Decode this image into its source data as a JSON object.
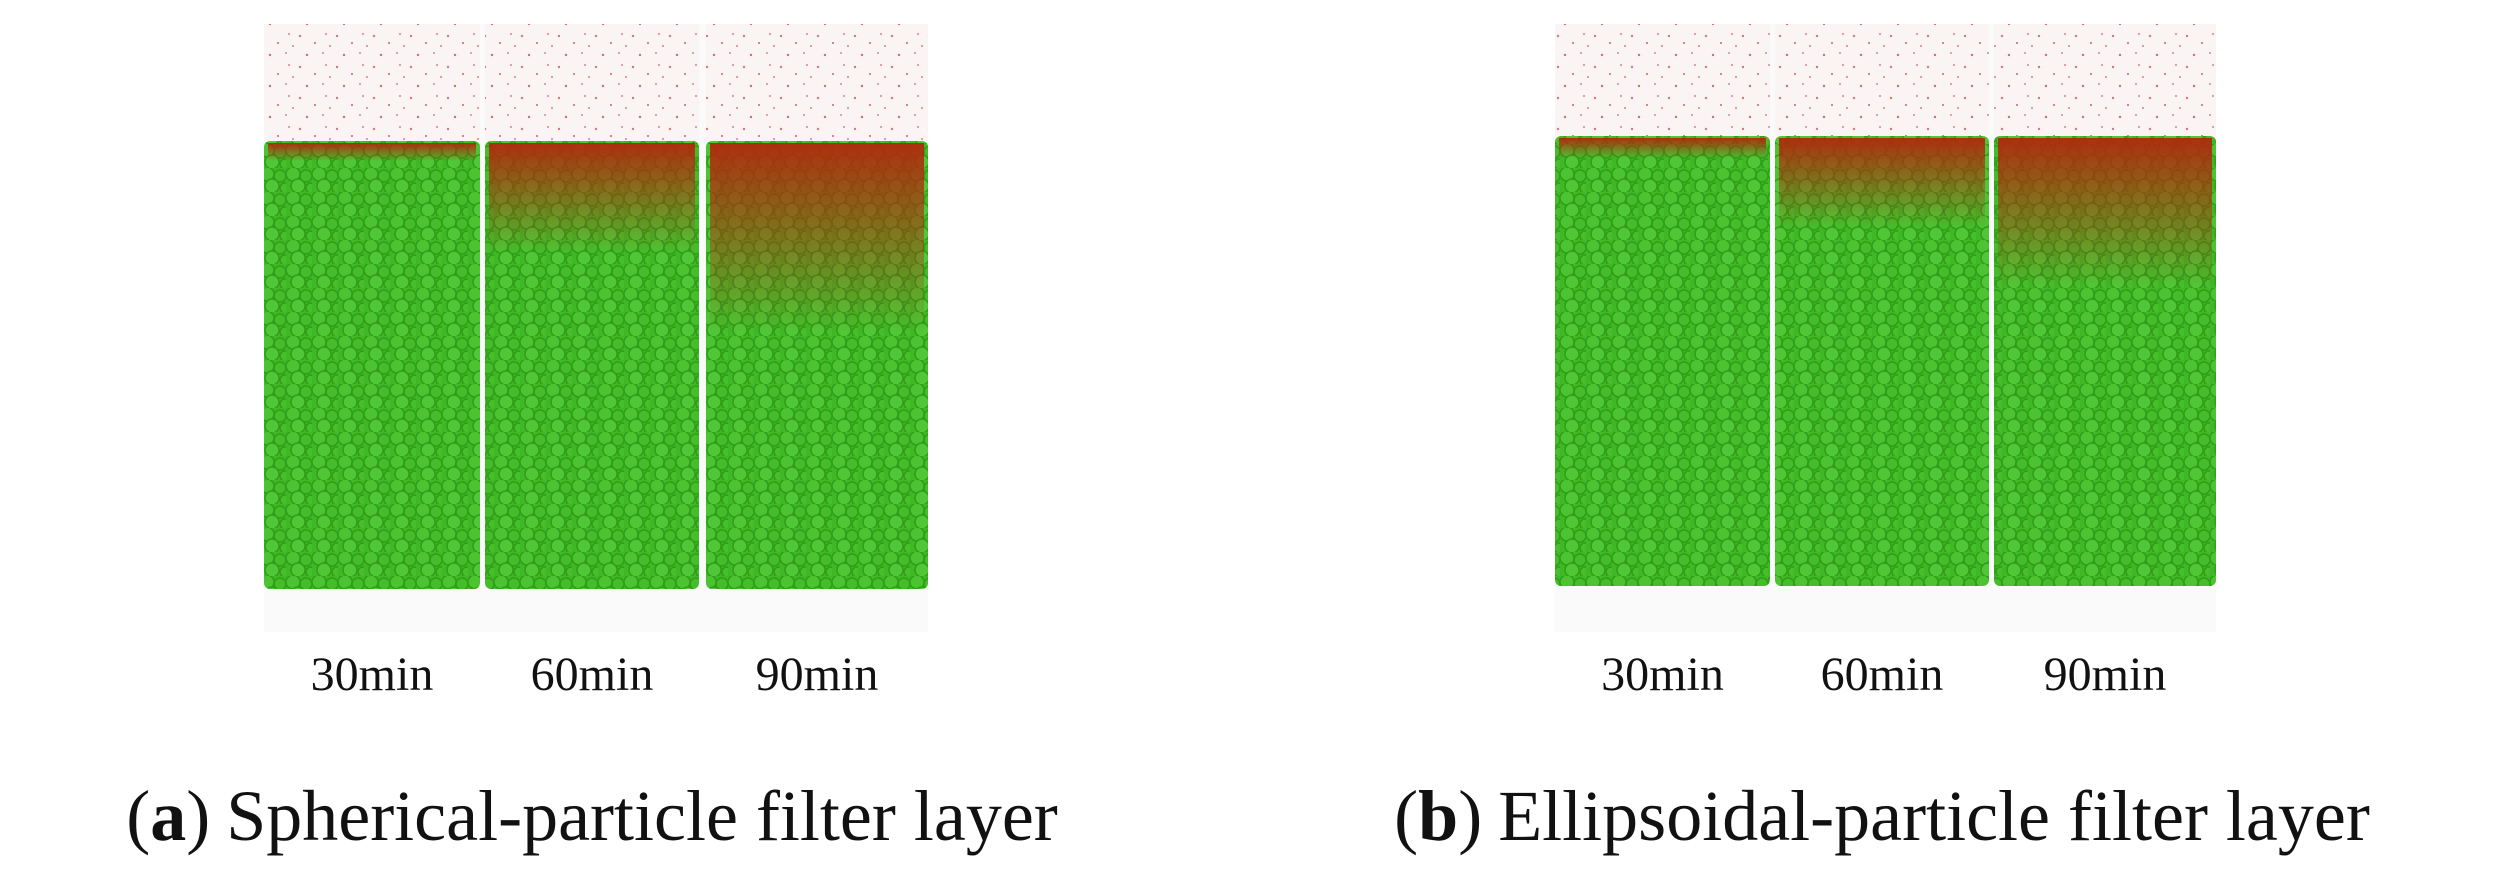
{
  "panels": [
    {
      "times": [
        "30min",
        "60min",
        "90min"
      ],
      "caption": {
        "open": "(",
        "label": "a",
        "close": ")",
        "text": "Spherical-particle filter layer"
      }
    },
    {
      "times": [
        "30min",
        "60min",
        "90min"
      ],
      "caption": {
        "open": "(",
        "label": "b",
        "close": ")",
        "text": "Ellipsoidal-particle filter layer"
      }
    }
  ]
}
